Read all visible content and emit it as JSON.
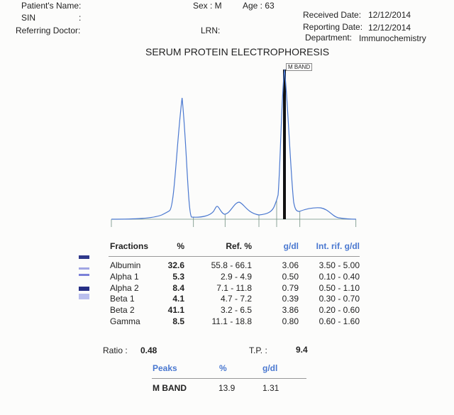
{
  "header": {
    "patient_name_label": "Patient's Name:",
    "sin_label": "SIN",
    "sin_colon": ":",
    "referring_doctor_label": "Referring Doctor:",
    "sex_label": "Sex : M",
    "age_label": "Age : 63",
    "lrn_label": "LRN:",
    "received_date_label": "Received Date:",
    "received_date": "12/12/2014",
    "reporting_date_label": "Reporting Date:",
    "reporting_date": "12/12/2014",
    "department_label": "Department:",
    "department": "Immunochemistry"
  },
  "title": "SERUM PROTEIN ELECTROPHORESIS",
  "graph": {
    "peak_label": "M BAND",
    "curve_color": "#4a78d0"
  },
  "fractions_table": {
    "headers": [
      "Fractions",
      "%",
      "Ref. %",
      "g/dl",
      "Int. rif. g/dl"
    ],
    "rows": [
      [
        "Albumin",
        "32.6",
        "55.8 - 66.1",
        "3.06",
        "3.50 - 5.00"
      ],
      [
        "Alpha 1",
        "5.3",
        "2.9 -  4.9",
        "0.50",
        "0.10 - 0.40"
      ],
      [
        "Alpha 2",
        "8.4",
        "7.1 - 11.8",
        "0.79",
        "0.50 - 1.10"
      ],
      [
        "Beta 1",
        "4.1",
        "4.7 -  7.2",
        "0.39",
        "0.30 - 0.70"
      ],
      [
        "Beta 2",
        "41.1",
        "3.2 -  6.5",
        "3.86",
        "0.20 - 0.60"
      ],
      [
        "Gamma",
        "8.5",
        "11.1 - 18.8",
        "0.80",
        "0.60 - 1.60"
      ]
    ]
  },
  "summary": {
    "ratio_label": "Ratio :",
    "ratio": "0.48",
    "tp_label": "T.P. :",
    "tp": "9.4"
  },
  "peaks_table": {
    "headers": [
      "Peaks",
      "%",
      "g/dl"
    ],
    "rows": [
      [
        "M BAND",
        "13.9",
        "1.31"
      ]
    ]
  }
}
